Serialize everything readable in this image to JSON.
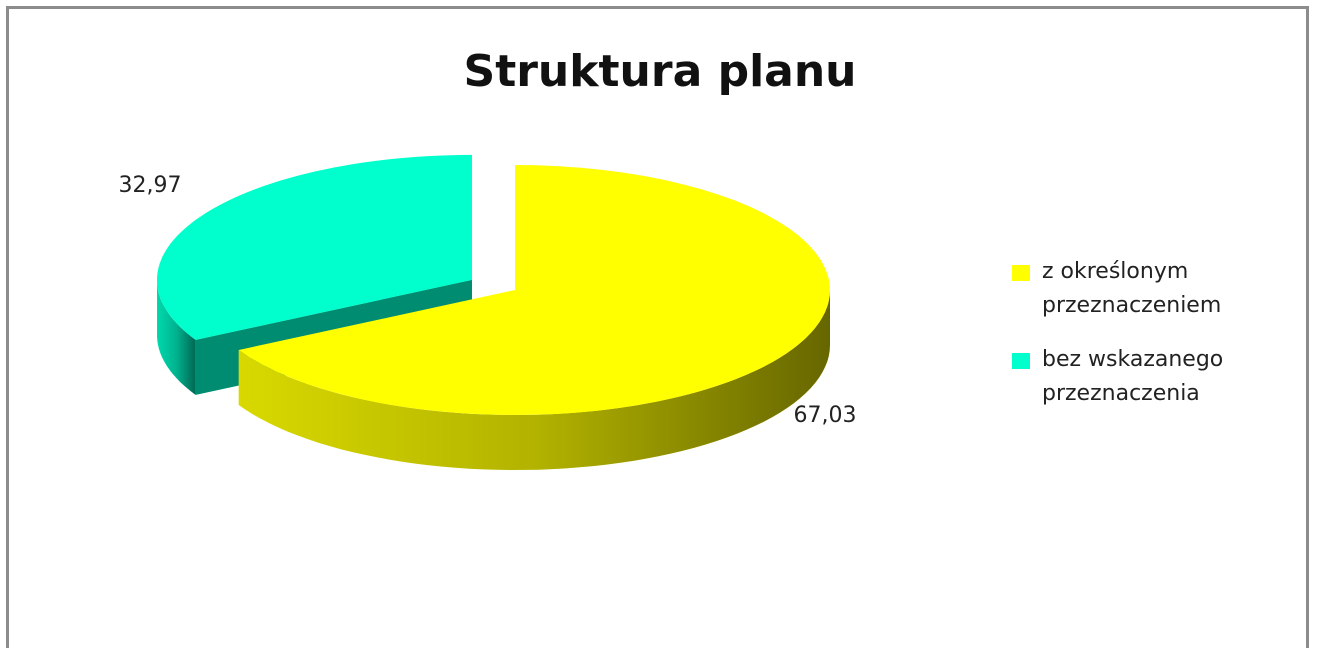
{
  "chart_data": {
    "type": "pie",
    "title": "Struktura planu",
    "categories": [
      "z określonym przeznaczeniem",
      "bez wskazanego przeznaczenia"
    ],
    "values": [
      67.03,
      32.97
    ],
    "value_labels": [
      "67,03",
      "32,97"
    ],
    "colors": [
      "#ffff00",
      "#00ffcc"
    ],
    "legend": "right"
  }
}
